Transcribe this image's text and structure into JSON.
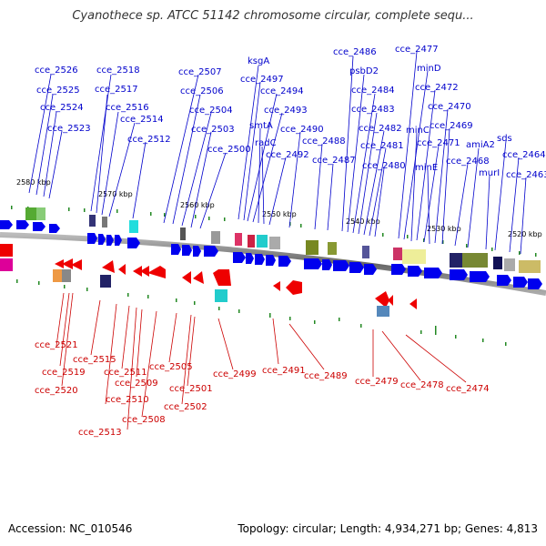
{
  "title": "Cyanothece sp. ATCC 51142 chromosome circular, complete sequ...",
  "footer": {
    "accession": "Accession: NC_010546",
    "summary": "Topology: circular; Length: 4,934,271 bp; Genes: 4,813"
  },
  "colors": {
    "forward": "#0000dd",
    "reverse": "#ee0000",
    "backbone": "#888888",
    "tick": "#228822"
  },
  "kbp_ticks": [
    "2580 kbp",
    "2570 kbp",
    "2560 kbp",
    "2550 kbp",
    "2540 kbp",
    "2530 kbp",
    "2520 kbp"
  ],
  "forward_genes": [
    "cce_2526",
    "cce_2525",
    "cce_2524",
    "cce_2523",
    "cce_2518",
    "cce_2517",
    "cce_2516",
    "cce_2514",
    "cce_2512",
    "cce_2507",
    "cce_2506",
    "cce_2504",
    "cce_2503",
    "cce_2500",
    "ksgA",
    "cce_2497",
    "cce_2494",
    "cce_2493",
    "smtA",
    "radC",
    "cce_2492",
    "cce_2490",
    "cce_2488",
    "cce_2487",
    "cce_2486",
    "psbD2",
    "cce_2484",
    "cce_2483",
    "cce_2482",
    "cce_2481",
    "cce_2480",
    "cce_2477",
    "minD",
    "cce_2472",
    "minC",
    "cce_2471",
    "cce_2470",
    "cce_2469",
    "minE",
    "cce_2468",
    "amiA2",
    "sds",
    "murI",
    "cce_2464",
    "cce_2463"
  ],
  "reverse_genes": [
    "cce_2521",
    "cce_2519",
    "cce_2520",
    "cce_2515",
    "cce_2511",
    "cce_2510",
    "cce_2513",
    "cce_2509",
    "cce_2508",
    "cce_2505",
    "cce_2501",
    "cce_2502",
    "cce_2499",
    "cce_2491",
    "cce_2489",
    "cce_2479",
    "cce_2478",
    "cce_2474"
  ]
}
